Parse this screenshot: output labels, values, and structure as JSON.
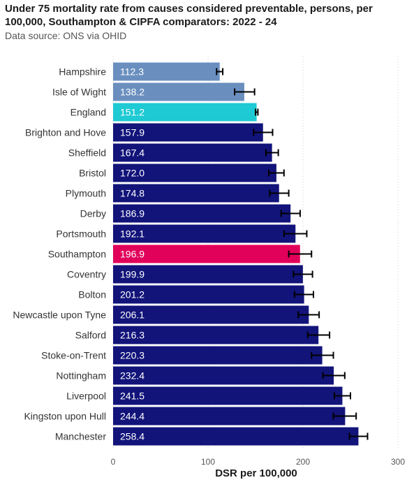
{
  "title": "Under 75 mortality rate from causes considered preventable, persons, per 100,000, Southampton & CIPFA comparators: 2022 - 24",
  "subtitle": "Data source: ONS via OHID",
  "colors": {
    "better": "#6a8fbf",
    "england": "#1ecad3",
    "worse": "#12147a",
    "southampton": "#e1005a",
    "gridline": "#cccccc",
    "error_bar": "#000000"
  },
  "chart_data": {
    "type": "bar",
    "orientation": "horizontal",
    "title": "Under 75 mortality rate from causes considered preventable, persons, per 100,000, Southampton & CIPFA comparators: 2022 - 24",
    "subtitle": "Data source: ONS via OHID",
    "xlabel": "DSR per 100,000",
    "ylabel": "",
    "xlim": [
      0,
      300
    ],
    "xticks": [
      0,
      100,
      200,
      300
    ],
    "grid": "vertical dotted",
    "categories": [
      "Hampshire",
      "Isle of Wight",
      "England",
      "Brighton and Hove",
      "Sheffield",
      "Bristol",
      "Plymouth",
      "Derby",
      "Portsmouth",
      "Southampton",
      "Coventry",
      "Bolton",
      "Newcastle upon Tyne",
      "Salford",
      "Stoke-on-Trent",
      "Nottingham",
      "Liverpool",
      "Kingston upon Hull",
      "Manchester"
    ],
    "labels": [
      "112.3",
      "138.2",
      "151.2",
      "157.9",
      "167.4",
      "172.0",
      "174.8",
      "186.9",
      "192.1",
      "196.9",
      "199.9",
      "201.2",
      "206.1",
      "216.3",
      "220.3",
      "232.4",
      "241.5",
      "244.4",
      "258.4"
    ],
    "values": [
      112.3,
      138.2,
      151.2,
      157.9,
      167.4,
      172.0,
      174.8,
      186.9,
      192.1,
      196.9,
      199.9,
      201.2,
      206.1,
      216.3,
      220.3,
      232.4,
      241.5,
      244.4,
      258.4
    ],
    "ci_lower": [
      109.0,
      128.0,
      150.0,
      148.0,
      161.0,
      164.0,
      165.0,
      177.0,
      180.0,
      185.0,
      190.0,
      191.0,
      195.0,
      205.0,
      209.0,
      221.0,
      233.0,
      232.0,
      249.0
    ],
    "ci_upper": [
      115.5,
      149.0,
      152.5,
      168.0,
      174.0,
      180.0,
      185.0,
      197.0,
      204.0,
      209.0,
      210.0,
      211.0,
      217.0,
      228.0,
      232.0,
      244.0,
      250.0,
      256.0,
      268.0
    ],
    "groups": [
      "better",
      "better",
      "england",
      "worse",
      "worse",
      "worse",
      "worse",
      "worse",
      "worse",
      "southampton",
      "worse",
      "worse",
      "worse",
      "worse",
      "worse",
      "worse",
      "worse",
      "worse",
      "worse"
    ]
  }
}
